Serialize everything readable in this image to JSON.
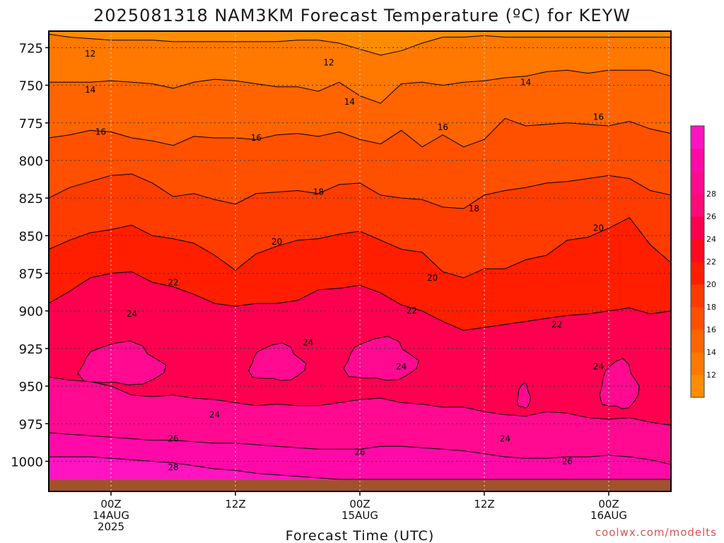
{
  "chart_data": {
    "type": "heatmap",
    "title": "2025081318 NAM3KM Forecast Temperature (ºC) for KEYW",
    "xlabel": "Forecast Time (UTC)",
    "ylabel": "",
    "credit": "coolwx.com/modelts",
    "y_axis": {
      "ticks": [
        725,
        750,
        775,
        800,
        825,
        850,
        875,
        900,
        925,
        950,
        975,
        1000
      ],
      "ylim": [
        1020,
        714
      ],
      "inverted": true,
      "unit": "hPa"
    },
    "x_axis": {
      "ticks": [
        {
          "hour": 6,
          "lines": [
            "00Z",
            "14AUG",
            "2025"
          ]
        },
        {
          "hour": 18,
          "lines": [
            "12Z"
          ]
        },
        {
          "hour": 30,
          "lines": [
            "00Z",
            "15AUG"
          ]
        },
        {
          "hour": 42,
          "lines": [
            "12Z"
          ]
        },
        {
          "hour": 54,
          "lines": [
            "00Z",
            "16AUG"
          ]
        }
      ],
      "xlim": [
        0,
        60
      ]
    },
    "contour_levels": [
      12,
      14,
      16,
      18,
      20,
      22,
      24,
      26,
      28
    ],
    "colorbar": {
      "ticks": [
        12,
        14,
        16,
        18,
        20,
        22,
        24,
        26,
        28
      ],
      "colors": [
        "#ff8c00",
        "#ff7800",
        "#ff6400",
        "#ff5000",
        "#ff3c00",
        "#ff1e00",
        "#ff0a1e",
        "#ff0050",
        "#ff0a78",
        "#ff0a90",
        "#ff0aa8",
        "#ff14c0"
      ]
    },
    "contour_labels": [
      {
        "text": "12",
        "hour": 4,
        "p": 729
      },
      {
        "text": "12",
        "hour": 27,
        "p": 735
      },
      {
        "text": "14",
        "hour": 4,
        "p": 753
      },
      {
        "text": "14",
        "hour": 29,
        "p": 761
      },
      {
        "text": "14",
        "hour": 46,
        "p": 748
      },
      {
        "text": "16",
        "hour": 5,
        "p": 781
      },
      {
        "text": "16",
        "hour": 20,
        "p": 785
      },
      {
        "text": "16",
        "hour": 38,
        "p": 778
      },
      {
        "text": "16",
        "hour": 53,
        "p": 771
      },
      {
        "text": "18",
        "hour": 26,
        "p": 821
      },
      {
        "text": "18",
        "hour": 41,
        "p": 832
      },
      {
        "text": "20",
        "hour": 22,
        "p": 854
      },
      {
        "text": "20",
        "hour": 37,
        "p": 878
      },
      {
        "text": "20",
        "hour": 53,
        "p": 845
      },
      {
        "text": "22",
        "hour": 12,
        "p": 881
      },
      {
        "text": "22",
        "hour": 35,
        "p": 900
      },
      {
        "text": "22",
        "hour": 49,
        "p": 909
      },
      {
        "text": "24",
        "hour": 8,
        "p": 902
      },
      {
        "text": "24",
        "hour": 25,
        "p": 921
      },
      {
        "text": "24",
        "hour": 34,
        "p": 937
      },
      {
        "text": "24",
        "hour": 16,
        "p": 969
      },
      {
        "text": "24",
        "hour": 44,
        "p": 985
      },
      {
        "text": "24",
        "hour": 53,
        "p": 937
      },
      {
        "text": "26",
        "hour": 12,
        "p": 985
      },
      {
        "text": "26",
        "hour": 30,
        "p": 994
      },
      {
        "text": "26",
        "hour": 50,
        "p": 1000
      },
      {
        "text": "28",
        "hour": 12,
        "p": 1004
      }
    ],
    "isotherms": [
      {
        "level": 12,
        "p": [
          716,
          718,
          719,
          720,
          720,
          720,
          721,
          721,
          721,
          721,
          721,
          721,
          720,
          720,
          722,
          726,
          730,
          727,
          722,
          718,
          718,
          717,
          718,
          718,
          718,
          718,
          718,
          718,
          718,
          718,
          718
        ]
      },
      {
        "level": 14,
        "p": [
          748,
          748,
          748,
          747,
          748,
          749,
          752,
          748,
          746,
          747,
          749,
          751,
          751,
          754,
          748,
          757,
          762,
          749,
          748,
          750,
          748,
          747,
          745,
          744,
          741,
          740,
          742,
          740,
          740,
          740,
          744
        ]
      },
      {
        "level": 16,
        "p": [
          785,
          783,
          780,
          781,
          785,
          787,
          790,
          784,
          785,
          785,
          786,
          783,
          782,
          784,
          781,
          786,
          789,
          780,
          791,
          783,
          791,
          786,
          772,
          777,
          776,
          775,
          776,
          777,
          774,
          779,
          782
        ]
      },
      {
        "level": 18,
        "p": [
          825,
          818,
          814,
          810,
          809,
          815,
          824,
          822,
          826,
          829,
          822,
          821,
          820,
          822,
          816,
          815,
          823,
          825,
          826,
          831,
          832,
          823,
          820,
          818,
          815,
          814,
          812,
          810,
          812,
          820,
          823
        ]
      },
      {
        "level": 20,
        "p": [
          859,
          853,
          848,
          846,
          843,
          850,
          852,
          855,
          863,
          873,
          862,
          857,
          853,
          852,
          849,
          847,
          853,
          859,
          861,
          874,
          878,
          872,
          872,
          866,
          863,
          853,
          851,
          845,
          838,
          856,
          868
        ]
      },
      {
        "level": 22,
        "p": [
          895,
          887,
          878,
          875,
          874,
          881,
          884,
          889,
          895,
          897,
          895,
          895,
          893,
          886,
          885,
          883,
          888,
          896,
          900,
          907,
          913,
          911,
          909,
          907,
          905,
          903,
          902,
          900,
          898,
          902,
          900
        ]
      },
      {
        "level": 24,
        "p": [
          944,
          946,
          947,
          950,
          956,
          957,
          956,
          958,
          959,
          961,
          963,
          962,
          963,
          963,
          961,
          959,
          958,
          961,
          962,
          964,
          964,
          967,
          969,
          970,
          967,
          968,
          971,
          972,
          971,
          974,
          976
        ]
      },
      {
        "level": 26,
        "p": [
          981,
          982,
          983,
          984,
          985,
          986,
          986,
          987,
          988,
          988,
          989,
          990,
          991,
          992,
          992,
          992,
          990,
          990,
          991,
          992,
          993,
          995,
          997,
          998,
          998,
          997,
          997,
          996,
          997,
          999,
          1002
        ]
      },
      {
        "level": 28,
        "p": [
          997,
          997,
          997,
          998,
          999,
          1000,
          1001,
          1003,
          1005,
          1006,
          1008,
          1009,
          1010,
          1011,
          1012,
          1012,
          1012,
          1012,
          1012,
          1012,
          1012,
          1012,
          1012,
          1012,
          1012,
          1012,
          1012,
          1012,
          1012,
          1012,
          1012
        ]
      }
    ],
    "closed_24_cells": [
      {
        "hour": 7,
        "p": 936,
        "dh": 4.0,
        "dp": 14
      },
      {
        "hour": 22,
        "p": 935,
        "dh": 2.6,
        "dp": 12
      },
      {
        "hour": 32,
        "p": 933,
        "dh": 3.4,
        "dp": 14
      },
      {
        "hour": 55,
        "p": 950,
        "dh": 1.8,
        "dp": 16
      },
      {
        "hour": 45.8,
        "p": 957,
        "dh": 0.6,
        "dp": 8
      }
    ],
    "ground": {
      "p_top": 1012
    }
  }
}
